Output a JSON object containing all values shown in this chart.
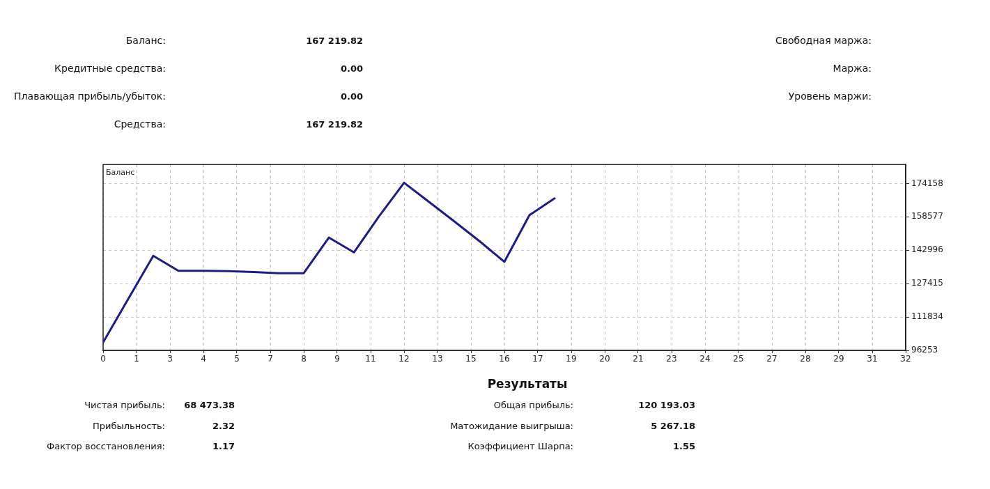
{
  "chart_data": [
    {
      "type": "other",
      "annotations": [
        "Баланс:",
        "167 219.82",
        "Кредитные средства:",
        "0.00",
        "Плавающая прибыль/убыток:",
        "0.00",
        "Средства:",
        "167 219.82",
        "Свободная маржа:",
        "Маржа:",
        "Уровень маржи:"
      ]
    },
    {
      "type": "line",
      "annotations": [
        "Баланс"
      ],
      "x": [
        0,
        1,
        2,
        3,
        4,
        5,
        6,
        7,
        8,
        9,
        10,
        11,
        12,
        13,
        14,
        15,
        16,
        17,
        18
      ],
      "values": [
        100000,
        120200,
        140400,
        133400,
        133400,
        133200,
        132800,
        132300,
        132300,
        148900,
        142000,
        158800,
        174500,
        165500,
        156500,
        147300,
        137600,
        159400,
        167200
      ],
      "color": "#1b1b8a",
      "xlim": [
        0,
        32
      ],
      "xticks": [
        0,
        {
          "value": 1.333,
          "label": "1"
        },
        {
          "value": 2.667,
          "label": "3"
        },
        4,
        {
          "value": 5.333,
          "label": "5"
        },
        {
          "value": 6.667,
          "label": "7"
        },
        8,
        {
          "value": 9.333,
          "label": "9"
        },
        {
          "value": 10.667,
          "label": "11"
        },
        12,
        {
          "value": 13.333,
          "label": "13"
        },
        {
          "value": 14.667,
          "label": "15"
        },
        16,
        {
          "value": 17.333,
          "label": "17"
        },
        {
          "value": 18.667,
          "label": "19"
        },
        20,
        {
          "value": 21.333,
          "label": "21"
        },
        {
          "value": 22.667,
          "label": "23"
        },
        24,
        {
          "value": 25.333,
          "label": "25"
        },
        {
          "value": 26.667,
          "label": "27"
        },
        28,
        {
          "value": 29.333,
          "label": "29"
        },
        {
          "value": 30.667,
          "label": "31"
        },
        32
      ],
      "ylim": [
        96253,
        183000
      ],
      "yticks": [
        96253,
        111834,
        127415,
        142996,
        158577,
        174158
      ],
      "grid": true
    },
    {
      "type": "other",
      "title": "Результаты",
      "annotations": [
        "Чистая прибыль:",
        "68 473.38",
        "Прибыльность:",
        "2.32",
        "Фактор восстановления:",
        "1.17",
        "Общая прибыль:",
        "120 193.03",
        "Матожидание выигрыша:",
        "5 267.18",
        "Коэффициент Шарпа:",
        "1.55"
      ]
    }
  ]
}
